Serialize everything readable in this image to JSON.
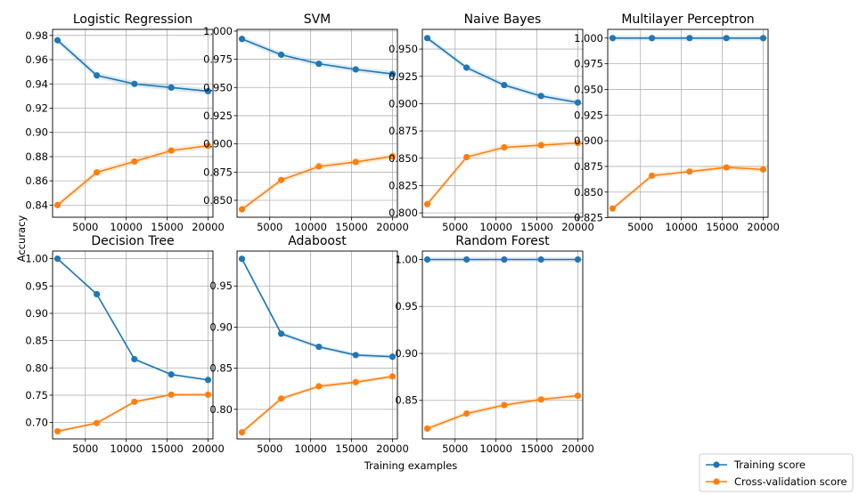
{
  "figure": {
    "ylabel": "Accuracy",
    "xlabel": "Training examples",
    "colors": {
      "train": "#1f77b4",
      "cv": "#ff7f0e",
      "grid": "#b0b0b0"
    },
    "legend": {
      "placement": "bottom-right",
      "entries": [
        {
          "series": "train",
          "label": "Training score"
        },
        {
          "series": "cv",
          "label": "Cross-validation score"
        }
      ]
    }
  },
  "chart_data": [
    {
      "type": "line",
      "title": "Logistic Regression",
      "x": [
        1600,
        6400,
        11000,
        15500,
        20000
      ],
      "xlim": [
        1000,
        20600
      ],
      "ylim": [
        0.83,
        0.985
      ],
      "xticks": [
        5000,
        10000,
        15000,
        20000
      ],
      "xtick_labels": [
        "5000",
        "10000",
        "15000",
        "20000"
      ],
      "yticks": [
        0.84,
        0.86,
        0.88,
        0.9,
        0.92,
        0.94,
        0.96,
        0.98
      ],
      "ytick_labels": [
        "0.84",
        "0.86",
        "0.88",
        "0.90",
        "0.92",
        "0.94",
        "0.96",
        "0.98"
      ],
      "grid": true,
      "series": [
        {
          "key": "train",
          "name": "Training score",
          "values": [
            0.976,
            0.947,
            0.94,
            0.937,
            0.934
          ]
        },
        {
          "key": "cv",
          "name": "Cross-validation score",
          "values": [
            0.84,
            0.867,
            0.876,
            0.885,
            0.889
          ]
        }
      ]
    },
    {
      "type": "line",
      "title": "SVM",
      "x": [
        1600,
        6400,
        11000,
        15500,
        20000
      ],
      "xlim": [
        1000,
        20600
      ],
      "ylim": [
        0.835,
        1.0015
      ],
      "xticks": [
        5000,
        10000,
        15000,
        20000
      ],
      "xtick_labels": [
        "5000",
        "10000",
        "15000",
        "20000"
      ],
      "yticks": [
        0.85,
        0.875,
        0.9,
        0.925,
        0.95,
        0.975,
        1.0
      ],
      "ytick_labels": [
        "0.850",
        "0.875",
        "0.900",
        "0.925",
        "0.950",
        "0.975",
        "1.000"
      ],
      "grid": true,
      "series": [
        {
          "key": "train",
          "name": "Training score",
          "values": [
            0.993,
            0.979,
            0.971,
            0.966,
            0.962
          ]
        },
        {
          "key": "cv",
          "name": "Cross-validation score",
          "values": [
            0.842,
            0.868,
            0.88,
            0.884,
            0.889
          ]
        }
      ]
    },
    {
      "type": "line",
      "title": "Naive Bayes",
      "x": [
        1600,
        6400,
        11000,
        15500,
        20000
      ],
      "xlim": [
        1000,
        20600
      ],
      "ylim": [
        0.796,
        0.968
      ],
      "xticks": [
        5000,
        10000,
        15000,
        20000
      ],
      "xtick_labels": [
        "5000",
        "10000",
        "15000",
        "20000"
      ],
      "yticks": [
        0.8,
        0.825,
        0.85,
        0.875,
        0.9,
        0.925,
        0.95
      ],
      "ytick_labels": [
        "0.800",
        "0.825",
        "0.850",
        "0.875",
        "0.900",
        "0.925",
        "0.950"
      ],
      "grid": true,
      "series": [
        {
          "key": "train",
          "name": "Training score",
          "values": [
            0.96,
            0.933,
            0.917,
            0.907,
            0.901
          ]
        },
        {
          "key": "cv",
          "name": "Cross-validation score",
          "values": [
            0.808,
            0.851,
            0.86,
            0.862,
            0.864
          ]
        }
      ]
    },
    {
      "type": "line",
      "title": "Multilayer Perceptron",
      "x": [
        1600,
        6400,
        11000,
        15500,
        20000
      ],
      "xlim": [
        1000,
        20600
      ],
      "ylim": [
        0.8255,
        1.0085
      ],
      "xticks": [
        5000,
        10000,
        15000,
        20000
      ],
      "xtick_labels": [
        "5000",
        "10000",
        "15000",
        "20000"
      ],
      "yticks": [
        0.825,
        0.85,
        0.875,
        0.9,
        0.925,
        0.95,
        0.975,
        1.0
      ],
      "ytick_labels": [
        "0.825",
        "0.850",
        "0.875",
        "0.900",
        "0.925",
        "0.950",
        "0.975",
        "1.000"
      ],
      "grid": true,
      "series": [
        {
          "key": "train",
          "name": "Training score",
          "values": [
            1.0,
            1.0,
            1.0,
            1.0,
            1.0
          ]
        },
        {
          "key": "cv",
          "name": "Cross-validation score",
          "values": [
            0.834,
            0.866,
            0.87,
            0.874,
            0.872
          ]
        }
      ]
    },
    {
      "type": "line",
      "title": "Decision Tree",
      "x": [
        1600,
        6400,
        11000,
        15500,
        20000
      ],
      "xlim": [
        1000,
        20600
      ],
      "ylim": [
        0.67,
        1.014
      ],
      "xticks": [
        5000,
        10000,
        15000,
        20000
      ],
      "xtick_labels": [
        "5000",
        "10000",
        "15000",
        "20000"
      ],
      "yticks": [
        0.7,
        0.75,
        0.8,
        0.85,
        0.9,
        0.95,
        1.0
      ],
      "ytick_labels": [
        "0.70",
        "0.75",
        "0.80",
        "0.85",
        "0.90",
        "0.95",
        "1.00"
      ],
      "grid": true,
      "series": [
        {
          "key": "train",
          "name": "Training score",
          "values": [
            1.0,
            0.935,
            0.816,
            0.788,
            0.778
          ]
        },
        {
          "key": "cv",
          "name": "Cross-validation score",
          "values": [
            0.684,
            0.699,
            0.738,
            0.751,
            0.751
          ]
        }
      ]
    },
    {
      "type": "line",
      "title": "Adaboost",
      "x": [
        1600,
        6400,
        11000,
        15500,
        20000
      ],
      "xlim": [
        1000,
        20600
      ],
      "ylim": [
        0.764,
        0.9925
      ],
      "xticks": [
        5000,
        10000,
        15000,
        20000
      ],
      "xtick_labels": [
        "5000",
        "10000",
        "15000",
        "20000"
      ],
      "yticks": [
        0.8,
        0.85,
        0.9,
        0.95
      ],
      "ytick_labels": [
        "0.80",
        "0.85",
        "0.90",
        "0.95"
      ],
      "grid": true,
      "series": [
        {
          "key": "train",
          "name": "Training score",
          "values": [
            0.983,
            0.892,
            0.876,
            0.866,
            0.864
          ]
        },
        {
          "key": "cv",
          "name": "Cross-validation score",
          "values": [
            0.772,
            0.813,
            0.828,
            0.833,
            0.84
          ]
        }
      ]
    },
    {
      "type": "line",
      "title": "Random Forest",
      "x": [
        1600,
        6400,
        11000,
        15500,
        20000
      ],
      "xlim": [
        1000,
        20600
      ],
      "ylim": [
        0.809,
        1.009
      ],
      "xticks": [
        5000,
        10000,
        15000,
        20000
      ],
      "xtick_labels": [
        "5000",
        "10000",
        "15000",
        "20000"
      ],
      "yticks": [
        0.85,
        0.9,
        0.95,
        1.0
      ],
      "ytick_labels": [
        "0.85",
        "0.90",
        "0.95",
        "1.00"
      ],
      "grid": true,
      "series": [
        {
          "key": "train",
          "name": "Training score",
          "values": [
            1.0,
            1.0,
            1.0,
            1.0,
            1.0
          ]
        },
        {
          "key": "cv",
          "name": "Cross-validation score",
          "values": [
            0.82,
            0.836,
            0.845,
            0.851,
            0.855
          ]
        }
      ]
    }
  ]
}
